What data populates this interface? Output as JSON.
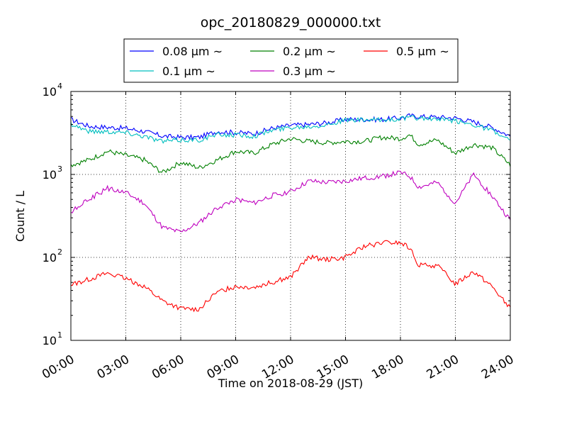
{
  "chart_data": {
    "type": "line",
    "title": "opc_20180829_000000.txt",
    "xlabel": "Time on 2018-08-29 (JST)",
    "ylabel": "Count / L",
    "y_scale": "log",
    "xlim": [
      0,
      24
    ],
    "ylim": [
      10,
      10000
    ],
    "grid": true,
    "legend_position": "top-center",
    "x_ticks": [
      "00:00",
      "03:00",
      "06:00",
      "09:00",
      "12:00",
      "15:00",
      "18:00",
      "21:00",
      "24:00"
    ],
    "y_ticks": [
      {
        "value": 10,
        "base": "10",
        "exp": "1"
      },
      {
        "value": 100,
        "base": "10",
        "exp": "2"
      },
      {
        "value": 1000,
        "base": "10",
        "exp": "3"
      },
      {
        "value": 10000,
        "base": "10",
        "exp": "4"
      }
    ],
    "x": [
      0,
      1,
      2,
      3,
      4,
      5,
      6,
      7,
      8,
      9,
      10,
      11,
      12,
      13,
      14,
      15,
      16,
      17,
      18,
      18.5,
      19,
      20,
      21,
      22,
      23,
      24
    ],
    "series": [
      {
        "name": "0.08 μm ~",
        "color": "#0000ff",
        "values": [
          4600,
          3800,
          3700,
          3600,
          3300,
          2900,
          2800,
          2800,
          3300,
          3200,
          3100,
          3600,
          3900,
          4000,
          4200,
          4600,
          4600,
          4600,
          4800,
          5100,
          5000,
          4900,
          4800,
          4300,
          3700,
          2900
        ]
      },
      {
        "name": "0.1 μm ~",
        "color": "#00bfbf",
        "values": [
          4100,
          3300,
          3300,
          3200,
          2900,
          2500,
          2600,
          2600,
          3000,
          3000,
          2900,
          3400,
          3700,
          3800,
          4000,
          4500,
          4500,
          4500,
          4700,
          4800,
          4800,
          4600,
          4400,
          4000,
          3400,
          2500
        ]
      },
      {
        "name": "0.2 μm ~",
        "color": "#008000",
        "values": [
          1300,
          1500,
          1900,
          1700,
          1500,
          1050,
          1400,
          1200,
          1500,
          1900,
          1800,
          2300,
          2700,
          2500,
          2400,
          2500,
          2500,
          2800,
          2700,
          3000,
          2300,
          2600,
          1800,
          2300,
          2100,
          1300
        ]
      },
      {
        "name": "0.3 μm ~",
        "color": "#bf00bf",
        "values": [
          350,
          500,
          680,
          600,
          450,
          230,
          200,
          260,
          400,
          500,
          450,
          560,
          620,
          830,
          800,
          830,
          900,
          950,
          1050,
          950,
          700,
          800,
          450,
          1000,
          550,
          280
        ]
      },
      {
        "name": "0.5 μm ~",
        "color": "#ff0000",
        "values": [
          47,
          55,
          65,
          55,
          45,
          30,
          24,
          24,
          38,
          45,
          44,
          50,
          58,
          100,
          95,
          100,
          135,
          150,
          150,
          130,
          80,
          80,
          48,
          68,
          45,
          24
        ]
      }
    ]
  }
}
